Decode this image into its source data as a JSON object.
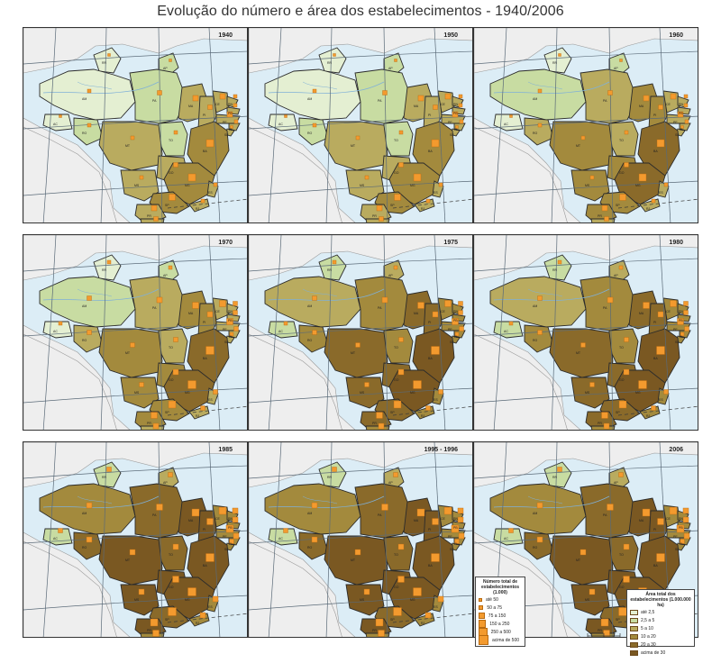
{
  "title": "Evolução do número e área dos estabelecimentos - 1940/2006",
  "panels": [
    {
      "year": "1940",
      "level": 0
    },
    {
      "year": "1950",
      "level": 1
    },
    {
      "year": "1960",
      "level": 2
    },
    {
      "year": "1970",
      "level": 3
    },
    {
      "year": "1975",
      "level": 4
    },
    {
      "year": "1980",
      "level": 5
    },
    {
      "year": "1985",
      "level": 6
    },
    {
      "year": "1995 - 1996",
      "level": 6
    },
    {
      "year": "2006",
      "level": 7
    }
  ],
  "legend_count": {
    "title": "Número total de estabelecimentos (1.000)",
    "items": [
      "até 50",
      "50 a 75",
      "75 a 150",
      "150 a 250",
      "250 a 500",
      "acima de 500"
    ]
  },
  "legend_area": {
    "title": "Área total dos estabelecimentos (1.000.000 ha)",
    "items": [
      "até 2,5",
      "2,5 a 5",
      "5 a 10",
      "10 a 20",
      "20 a 30",
      "acima de 30"
    ]
  },
  "colors": {
    "ocean": "#dcedf6",
    "land_outside": "#eeeeee",
    "class_fills": [
      "#e4efd2",
      "#c8dca2",
      "#b9ab5f",
      "#a38a3d",
      "#8a6a2a",
      "#7a5822"
    ],
    "square": "#f39a2e",
    "grid": "#5a6a78"
  },
  "state_labels": [
    "AM",
    "PA",
    "MT",
    "BA",
    "MG",
    "SP",
    "PR",
    "SC",
    "RS",
    "GO",
    "MA",
    "PI",
    "CE",
    "RR",
    "AP",
    "AC",
    "RO",
    "TO",
    "MS",
    "ES",
    "RJ",
    "PE",
    "PB",
    "AL",
    "SE",
    "RN"
  ]
}
